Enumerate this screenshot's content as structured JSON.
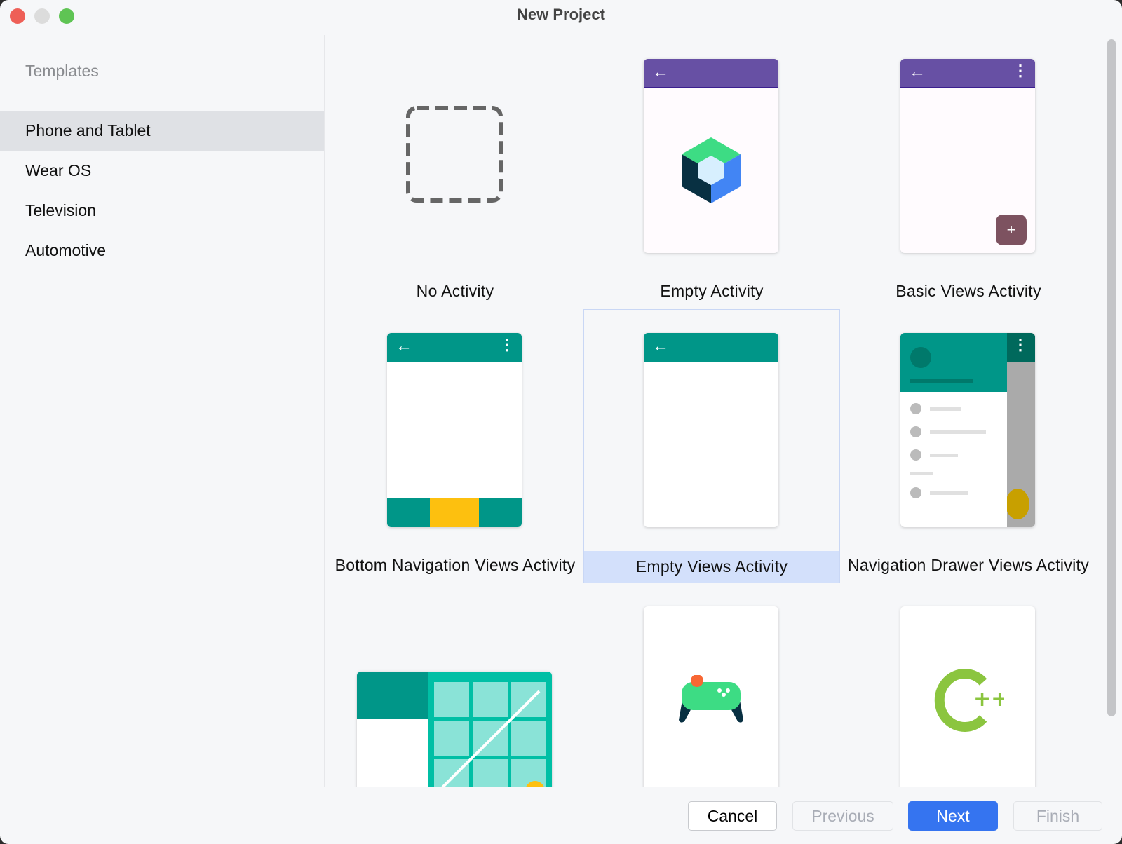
{
  "window": {
    "title": "New Project"
  },
  "sidebar": {
    "header": "Templates",
    "items": [
      {
        "label": "Phone and Tablet",
        "selected": true
      },
      {
        "label": "Wear OS"
      },
      {
        "label": "Television"
      },
      {
        "label": "Automotive"
      }
    ]
  },
  "templates": [
    {
      "label": "No Activity"
    },
    {
      "label": "Empty Activity"
    },
    {
      "label": "Basic Views Activity"
    },
    {
      "label": "Bottom Navigation Views Activity"
    },
    {
      "label": "Empty Views Activity",
      "selected": true
    },
    {
      "label": "Navigation Drawer Views Activity"
    },
    {
      "label": ""
    },
    {
      "label": ""
    },
    {
      "label": ""
    }
  ],
  "footer": {
    "cancel": "Cancel",
    "previous": "Previous",
    "next": "Next",
    "finish": "Finish"
  },
  "colors": {
    "accent": "#3574f0",
    "purple": "#6750a4",
    "teal": "#009688",
    "selection": "#d3e0fb"
  }
}
